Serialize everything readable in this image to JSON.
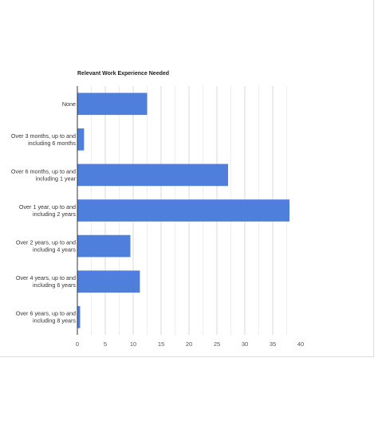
{
  "chart_data": {
    "type": "bar",
    "orientation": "horizontal",
    "title": "Relevant Work Experience Needed",
    "xlabel": "",
    "ylabel": "",
    "categories": [
      [
        "None"
      ],
      [
        "Over 3 months, up to and",
        "including 6 months"
      ],
      [
        "Over 6 months, up to and",
        "including 1 year"
      ],
      [
        "Over 1 year, up to and",
        "including 2 years"
      ],
      [
        "Over 2 years, up to and",
        "including 4 years"
      ],
      [
        "Over 4 years, up to and",
        "including 6 years"
      ],
      [
        "Over 6 years, up to and",
        "including 8 years"
      ]
    ],
    "values": [
      12.5,
      1.2,
      27,
      38,
      9.5,
      11.2,
      0.5
    ],
    "xlim": [
      0,
      40
    ],
    "ticks": [
      "0",
      "5",
      "10",
      "15",
      "20",
      "25",
      "30",
      "35",
      "40"
    ],
    "bar_color": "#4f7fdc",
    "grid": true,
    "legend": "none"
  }
}
